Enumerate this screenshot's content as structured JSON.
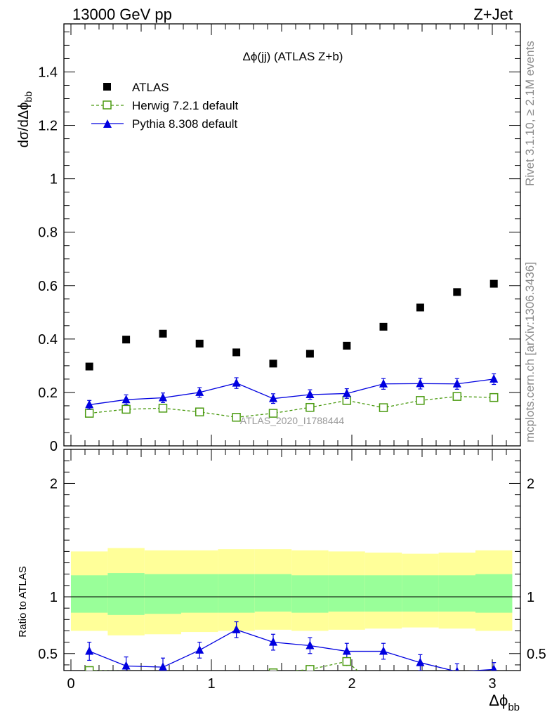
{
  "header": {
    "left": "13000 GeV pp",
    "right": "Z+Jet"
  },
  "side_labels": {
    "rivet": "Rivet 3.1.10, ≥ 2.1M events",
    "mcplots": "mcplots.cern.ch [arXiv:1306.3436]"
  },
  "watermark": "ATLAS_2020_I1788444",
  "chart_data": [
    {
      "type": "scatter",
      "title": "Δϕ(jj) (ATLAS Z+b)",
      "ylabel": "dσ/dΔϕbb",
      "xlim": [
        -0.05,
        3.2
      ],
      "ylim": [
        0,
        1.58
      ],
      "y_ticks": [
        {
          "v": 0,
          "label": "0"
        },
        {
          "v": 0.2,
          "label": "0.2"
        },
        {
          "v": 0.4,
          "label": "0.4"
        },
        {
          "v": 0.6,
          "label": "0.6"
        },
        {
          "v": 0.8,
          "label": "0.8"
        },
        {
          "v": 1.0,
          "label": "1"
        },
        {
          "v": 1.2,
          "label": "1.2"
        },
        {
          "v": 1.4,
          "label": "1.4"
        }
      ],
      "legend_position": "top-left",
      "x": [
        0.131,
        0.393,
        0.655,
        0.916,
        1.178,
        1.44,
        1.702,
        1.964,
        2.225,
        2.487,
        2.749,
        3.011
      ],
      "series": [
        {
          "name": "ATLAS",
          "color": "#000000",
          "marker": "square",
          "values": [
            0.297,
            0.398,
            0.42,
            0.383,
            0.35,
            0.308,
            0.345,
            0.375,
            0.446,
            0.518,
            0.576,
            0.607
          ]
        },
        {
          "name": "Herwig 7.2.1 default",
          "color": "#4a9a10",
          "marker": "open-square",
          "dashed": true,
          "values": [
            0.122,
            0.137,
            0.141,
            0.127,
            0.107,
            0.122,
            0.144,
            0.17,
            0.143,
            0.17,
            0.185,
            0.181
          ],
          "errors": [
            0.012,
            0.012,
            0.012,
            0.012,
            0.012,
            0.012,
            0.012,
            0.014,
            0.012,
            0.012,
            0.014,
            0.014
          ]
        },
        {
          "name": "Pythia 8.308 default",
          "color": "#0000e0",
          "marker": "triangle",
          "values": [
            0.154,
            0.173,
            0.18,
            0.2,
            0.235,
            0.177,
            0.192,
            0.196,
            0.232,
            0.233,
            0.232,
            0.25
          ],
          "errors": [
            0.016,
            0.018,
            0.018,
            0.018,
            0.02,
            0.018,
            0.018,
            0.018,
            0.02,
            0.02,
            0.02,
            0.02
          ]
        }
      ]
    },
    {
      "type": "line",
      "ylabel": "Ratio to ATLAS",
      "xlabel": "Δϕbb",
      "xlim": [
        -0.05,
        3.2
      ],
      "ylim": [
        0.35,
        2.3
      ],
      "x_ticks": [
        {
          "v": 0,
          "label": "0"
        },
        {
          "v": 1,
          "label": "1"
        },
        {
          "v": 2,
          "label": "2"
        },
        {
          "v": 3,
          "label": "3"
        }
      ],
      "y_ticks": [
        {
          "v": 0.5,
          "label": "0.5"
        },
        {
          "v": 1,
          "label": "1"
        },
        {
          "v": 2,
          "label": "2"
        }
      ],
      "bin_edges": [
        0,
        0.262,
        0.524,
        0.785,
        1.047,
        1.309,
        1.571,
        1.833,
        2.094,
        2.356,
        2.618,
        2.88,
        3.142
      ],
      "band_yellow": {
        "low": [
          0.7,
          0.66,
          0.67,
          0.69,
          0.7,
          0.71,
          0.7,
          0.71,
          0.72,
          0.73,
          0.72,
          0.7
        ],
        "high": [
          1.4,
          1.43,
          1.41,
          1.41,
          1.42,
          1.42,
          1.41,
          1.4,
          1.39,
          1.38,
          1.39,
          1.41
        ]
      },
      "band_green": {
        "low": [
          0.86,
          0.84,
          0.85,
          0.86,
          0.86,
          0.87,
          0.86,
          0.87,
          0.87,
          0.87,
          0.87,
          0.86
        ],
        "high": [
          1.19,
          1.21,
          1.2,
          1.2,
          1.2,
          1.2,
          1.19,
          1.19,
          1.19,
          1.19,
          1.19,
          1.2
        ]
      },
      "series": [
        {
          "name": "Pythia 8.308 default",
          "color": "#0000e0",
          "x": [
            0.131,
            0.393,
            0.655,
            0.916,
            1.178,
            1.44,
            1.702,
            1.964,
            2.225,
            2.487,
            2.749,
            3.011
          ],
          "values": [
            0.52,
            0.39,
            0.38,
            0.53,
            0.71,
            0.6,
            0.57,
            0.52,
            0.52,
            0.42,
            0.34,
            0.36
          ],
          "errors": [
            0.08,
            0.08,
            0.08,
            0.07,
            0.07,
            0.07,
            0.07,
            0.07,
            0.07,
            0.07,
            0.07,
            0.06
          ]
        },
        {
          "name": "Herwig 7.2.1 default",
          "color": "#4a9a10",
          "x": [
            0.131,
            1.44,
            1.702,
            1.964,
            2.04
          ],
          "values": [
            0.35,
            0.33,
            0.36,
            0.43,
            0.35
          ],
          "errors": [
            0.03,
            0.03,
            0.03,
            0.04,
            0.0
          ]
        }
      ]
    }
  ]
}
